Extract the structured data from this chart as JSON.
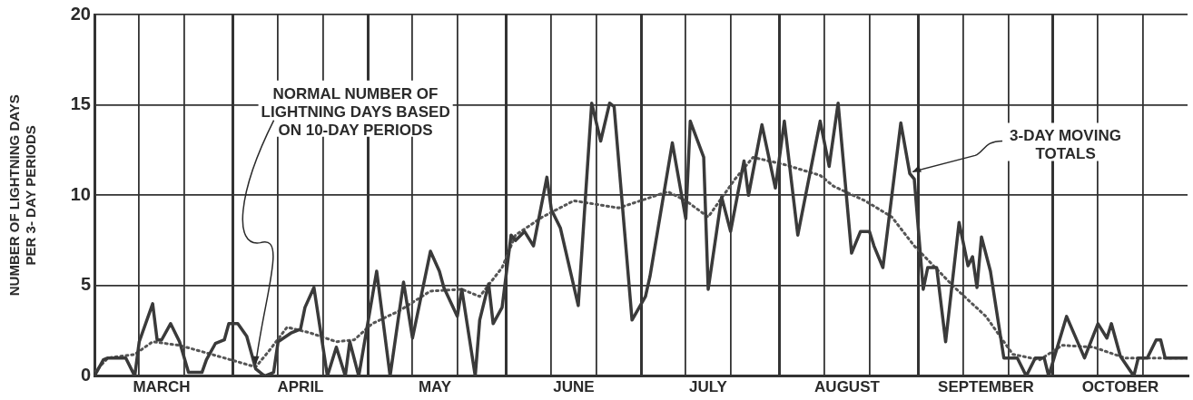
{
  "chart_data": {
    "type": "line",
    "ylabel": "NUMBER OF LIGHTNING DAYS\nPER 3- DAY PERIODS",
    "xlim": [
      "--03-01",
      "--10-31"
    ],
    "xticks": [
      {
        "value": "--03-01",
        "label": null
      },
      {
        "value": "--03-11",
        "label": null
      },
      {
        "value": "--03-16",
        "label": "MARCH"
      },
      {
        "value": "--03-21",
        "label": null
      },
      {
        "value": "--04-01",
        "label": null
      },
      {
        "value": "--04-11",
        "label": null
      },
      {
        "value": "--04-16",
        "label": "APRIL"
      },
      {
        "value": "--04-21",
        "label": null
      },
      {
        "value": "--05-01",
        "label": null
      },
      {
        "value": "--05-11",
        "label": null
      },
      {
        "value": "--05-16",
        "label": "MAY"
      },
      {
        "value": "--05-21",
        "label": null
      },
      {
        "value": "--06-01",
        "label": null
      },
      {
        "value": "--06-11",
        "label": null
      },
      {
        "value": "--06-16",
        "label": "JUNE"
      },
      {
        "value": "--06-21",
        "label": null
      },
      {
        "value": "--07-01",
        "label": null
      },
      {
        "value": "--07-11",
        "label": null
      },
      {
        "value": "--07-16",
        "label": "JULY"
      },
      {
        "value": "--07-21",
        "label": null
      },
      {
        "value": "--08-01",
        "label": null
      },
      {
        "value": "--08-11",
        "label": null
      },
      {
        "value": "--08-16",
        "label": "AUGUST"
      },
      {
        "value": "--08-21",
        "label": null
      },
      {
        "value": "--09-01",
        "label": null
      },
      {
        "value": "--09-11",
        "label": null
      },
      {
        "value": "--09-16",
        "label": "SEPTEMBER"
      },
      {
        "value": "--09-21",
        "label": null
      },
      {
        "value": "--10-01",
        "label": null
      },
      {
        "value": "--10-11",
        "label": null
      },
      {
        "value": "--10-16",
        "label": "OCTOBER"
      },
      {
        "value": "--10-21",
        "label": null
      }
    ],
    "ylim": [
      0,
      20
    ],
    "yticks": [
      0,
      5,
      10,
      15,
      20
    ],
    "grid": true,
    "marker": "none",
    "series": [
      {
        "color": "#3a3a3a",
        "line_style": "solid",
        "x": [
          "--03-01",
          "--03-03",
          "--03-04",
          "--03-08",
          "--03-10",
          "--03-11",
          "--03-14",
          "--03-15",
          "--03-16",
          "--03-18",
          "--03-20",
          "--03-22",
          "--03-25",
          "--03-26",
          "--03-28",
          "--03-30",
          "--03-31",
          "--04-02",
          "--04-04",
          "--04-06",
          "--04-08",
          "--04-10",
          "--04-11",
          "--04-14",
          "--04-16",
          "--04-17",
          "--04-19",
          "--04-22",
          "--04-24",
          "--04-26",
          "--04-27",
          "--04-29",
          "--05-03",
          "--05-06",
          "--05-09",
          "--05-11",
          "--05-15",
          "--05-17",
          "--05-18",
          "--05-21",
          "--05-22",
          "--05-25",
          "--05-26",
          "--05-28",
          "--05-29",
          "--05-31",
          "--06-02",
          "--06-03",
          "--06-05",
          "--06-07",
          "--06-10",
          "--06-11",
          "--06-13",
          "--06-17",
          "--06-20",
          "--06-22",
          "--06-24",
          "--06-25",
          "--06-29",
          "--07-02",
          "--07-03",
          "--07-08",
          "--07-11",
          "--07-12",
          "--07-15",
          "--07-16",
          "--07-19",
          "--07-21",
          "--07-24",
          "--07-25",
          "--07-28",
          "--07-31",
          "--08-02",
          "--08-05",
          "--08-10",
          "--08-12",
          "--08-14",
          "--08-17",
          "--08-19",
          "--08-21",
          "--08-22",
          "--08-24",
          "--08-28",
          "--08-30",
          "--08-31",
          "--09-02",
          "--09-03",
          "--09-05",
          "--09-07",
          "--09-10",
          "--09-12",
          "--09-13",
          "--09-14",
          "--09-15",
          "--09-17",
          "--09-20",
          "--09-23",
          "--09-25",
          "--09-27",
          "--09-29",
          "--09-30",
          "--10-04",
          "--10-08",
          "--10-11",
          "--10-13",
          "--10-14",
          "--10-16",
          "--10-19",
          "--10-20",
          "--10-22",
          "--10-24",
          "--10-25",
          "--10-26",
          "--10-31"
        ],
        "values": [
          0,
          0.9,
          1,
          1,
          0,
          1.9,
          4,
          2,
          2,
          2.9,
          1.9,
          0.2,
          0.2,
          0.9,
          1.8,
          2,
          2.9,
          2.9,
          2.2,
          0.4,
          0,
          0.2,
          1.9,
          2.4,
          2.6,
          3.8,
          4.9,
          0,
          1.6,
          0,
          1.9,
          0,
          5.8,
          0,
          5.2,
          2.1,
          6.9,
          5.8,
          4.9,
          3.3,
          4.8,
          0,
          3.1,
          5.1,
          2.9,
          3.8,
          7.8,
          7.5,
          8,
          7.2,
          11,
          9.2,
          8.2,
          3.9,
          15.1,
          13,
          15.1,
          14.9,
          3.1,
          4.4,
          5.5,
          12.9,
          8.7,
          14.1,
          12.1,
          4.8,
          9.9,
          8,
          11.9,
          10,
          13.9,
          10.4,
          14.1,
          7.8,
          14.1,
          11.6,
          15.1,
          6.8,
          8,
          8,
          7.2,
          6,
          14,
          11.2,
          10.9,
          4.8,
          6,
          6,
          1.9,
          8.5,
          6.1,
          6.6,
          4.9,
          7.7,
          5.8,
          1,
          1,
          0,
          1,
          1,
          0,
          3.3,
          1,
          2.9,
          2.1,
          2.9,
          1.1,
          0,
          1,
          1,
          2,
          2,
          1,
          1
        ]
      },
      {
        "color": "#555555",
        "line_style": "dotted",
        "x": [
          "--03-01",
          "--03-04",
          "--03-10",
          "--03-14",
          "--03-20",
          "--03-30",
          "--04-06",
          "--04-09",
          "--04-13",
          "--04-18",
          "--04-24",
          "--04-28",
          "--05-02",
          "--05-08",
          "--05-15",
          "--05-22",
          "--05-26",
          "--05-31",
          "--06-03",
          "--06-09",
          "--06-16",
          "--06-26",
          "--07-07",
          "--07-11",
          "--07-16",
          "--07-22",
          "--07-26",
          "--08-02",
          "--08-10",
          "--08-13",
          "--08-20",
          "--08-26",
          "--08-31",
          "--09-09",
          "--09-16",
          "--09-22",
          "--09-28",
          "--10-03",
          "--10-10",
          "--10-17",
          "--10-31"
        ],
        "values": [
          0.2,
          1,
          1.2,
          1.9,
          1.7,
          1,
          0.5,
          1.4,
          2.7,
          2.4,
          1.9,
          2,
          2.9,
          3.6,
          4.7,
          4.8,
          4.4,
          6,
          7.8,
          8.8,
          9.7,
          9.3,
          10.2,
          9.7,
          8.8,
          10.9,
          12.1,
          11.7,
          11.1,
          10.5,
          9.7,
          8.8,
          7.2,
          4.9,
          3.3,
          1.2,
          0.9,
          1.7,
          1.6,
          1,
          1
        ]
      }
    ],
    "annotations": [
      {
        "text": "NORMAL NUMBER OF\nLIGHTNING DAYS BASED\nON 10-DAY PERIODS",
        "x": "--04-06",
        "y": 0.5
      },
      {
        "text": "3-DAY MOVING\nTOTALS",
        "x": "--08-30",
        "y": 11.2
      }
    ]
  }
}
